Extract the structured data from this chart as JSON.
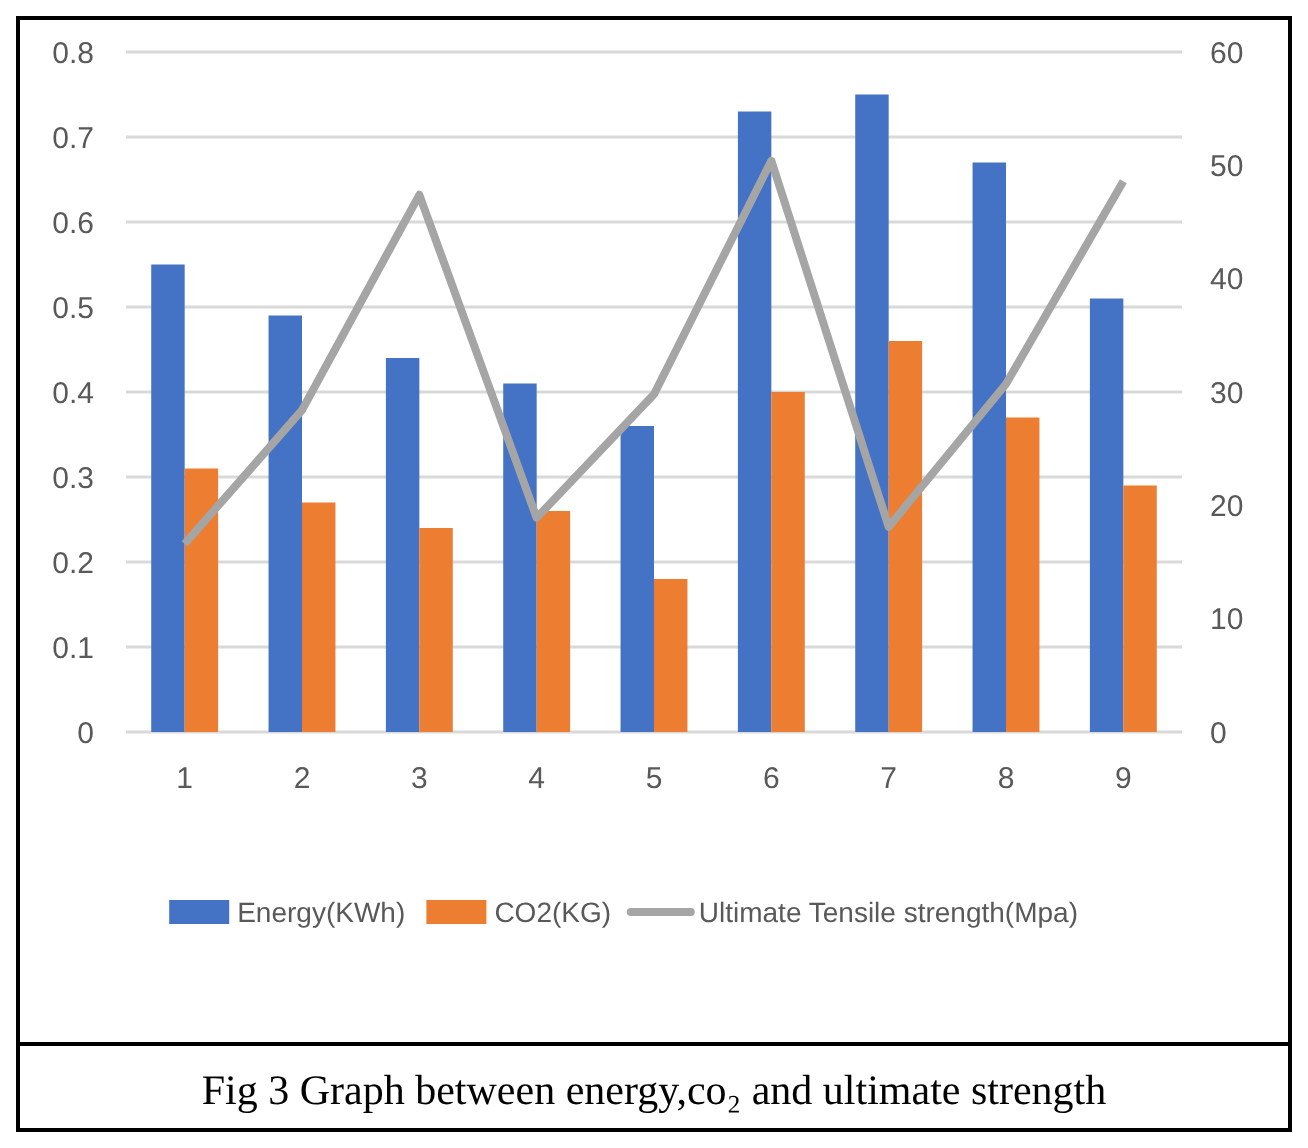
{
  "chart_data": {
    "type": "bar",
    "categories": [
      "1",
      "2",
      "3",
      "4",
      "5",
      "6",
      "7",
      "8",
      "9"
    ],
    "series": [
      {
        "name": "Energy(KWh)",
        "color": "#4472c4",
        "values": [
          0.55,
          0.49,
          0.44,
          0.41,
          0.36,
          0.73,
          0.75,
          0.67,
          0.51
        ]
      },
      {
        "name": "CO2(KG)",
        "color": "#ed7d31",
        "values": [
          0.31,
          0.27,
          0.24,
          0.26,
          0.18,
          0.4,
          0.46,
          0.37,
          0.29
        ]
      },
      {
        "name": "Ultimate Tensile strength(Mpa)",
        "type": "line",
        "axis": "y2",
        "color": "#a5a5a5",
        "marker": "none",
        "values": [
          16.6,
          28.4,
          47.4,
          18.9,
          29.8,
          50.4,
          18.1,
          30.7,
          48.6
        ]
      }
    ],
    "ylim": [
      0,
      0.8
    ],
    "yticks": [
      0,
      0.1,
      0.2,
      0.3,
      0.4,
      0.5,
      0.6,
      0.7,
      0.8
    ],
    "y2lim": [
      0,
      60
    ],
    "y2ticks": [
      0,
      10,
      20,
      30,
      40,
      50,
      60
    ],
    "grid": "y",
    "legend": "bottom",
    "annotations": [
      "Fig 3 Graph between energy,co₂ and ultimate strength"
    ]
  }
}
